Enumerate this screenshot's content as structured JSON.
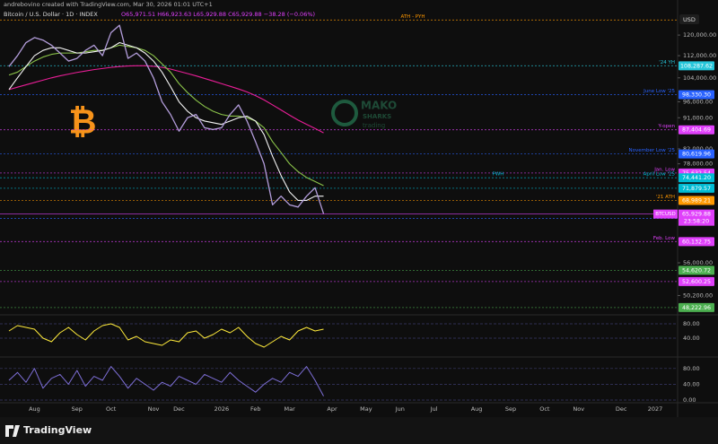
{
  "chart_data": {
    "type": "line",
    "credit": "andrebovino created with TradingView.com, Mar 30, 2026 01:01 UTC+1",
    "title": "Bitcoin / U.S. Dollar · 1D · INDEX",
    "ohlc": "O65,971.51 H66,923.63 L65,929.88 C65,929.88 −38.28 (−0.06%)",
    "currency": "USD",
    "brand": "TradingView",
    "watermark": {
      "symbol": "₿",
      "name": "MAKO",
      "sub": "SHARKS",
      "tag": "trading"
    },
    "log_scale": true,
    "ylim": [
      47200,
      129000
    ],
    "yticks": [
      {
        "value": 120000,
        "label": "120,000.00"
      },
      {
        "value": 112000,
        "label": "112,000.00"
      },
      {
        "value": 104000,
        "label": "104,000.00"
      },
      {
        "value": 96000,
        "label": "96,000.00"
      },
      {
        "value": 91000,
        "label": "91,000.00"
      },
      {
        "value": 82000,
        "label": "82,000.00"
      },
      {
        "value": 78000,
        "label": "78,000.00"
      },
      {
        "value": 56000,
        "label": "56,000.00"
      },
      {
        "value": 50200,
        "label": "50,200.00"
      }
    ],
    "categories": [
      null,
      null,
      null,
      "Aug",
      null,
      null,
      null,
      null,
      "Sep",
      null,
      null,
      null,
      "Oct",
      null,
      null,
      null,
      null,
      "Nov",
      null,
      null,
      "Dec",
      null,
      null,
      null,
      null,
      "2026",
      null,
      null,
      null,
      "Feb",
      null,
      null,
      null,
      "Mar",
      null,
      null,
      null,
      null,
      "Apr",
      null,
      null,
      null,
      "May",
      null,
      null,
      null,
      "Jun",
      null,
      null,
      null,
      "Jul",
      null,
      null,
      null,
      null,
      "Aug",
      null,
      null,
      null,
      "Sep",
      null,
      null,
      null,
      "Oct",
      null,
      null,
      null,
      "Nov",
      null,
      null,
      null,
      null,
      "Dec",
      null,
      null,
      null,
      "2027"
    ],
    "series": [
      {
        "color": "#e91e97",
        "values": [
          100000,
          100800,
          101600,
          102400,
          103200,
          104000,
          104700,
          105300,
          105900,
          106400,
          106900,
          107300,
          107700,
          108000,
          108200,
          108300,
          108300,
          108100,
          107700,
          107100,
          106300,
          105500,
          104700,
          103800,
          102900,
          102000,
          101100,
          100200,
          99200,
          98000,
          96600,
          95000,
          93400,
          91800,
          90300,
          89000,
          87800,
          86500,
          null,
          null,
          null,
          null,
          null,
          null,
          null,
          null,
          null,
          null,
          null,
          null,
          null,
          null,
          null,
          null,
          null,
          null,
          null,
          null,
          null,
          null,
          null,
          null,
          null,
          null,
          null,
          null,
          null,
          null,
          null,
          null,
          null,
          null,
          null,
          null,
          null,
          null,
          null
        ]
      },
      {
        "color": "#8bc34a",
        "values": [
          105000,
          106000,
          108000,
          110000,
          111500,
          112500,
          113000,
          113000,
          113000,
          113500,
          114000,
          114000,
          115000,
          116000,
          115500,
          115000,
          114000,
          112000,
          109000,
          106000,
          102000,
          99000,
          96500,
          94500,
          93000,
          92000,
          91500,
          91500,
          91000,
          90000,
          88000,
          84000,
          81000,
          78000,
          76000,
          74500,
          73500,
          72500,
          null,
          null,
          null,
          null,
          null,
          null,
          null,
          null,
          null,
          null,
          null,
          null,
          null,
          null,
          null,
          null,
          null,
          null,
          null,
          null,
          null,
          null,
          null,
          null,
          null,
          null,
          null,
          null,
          null,
          null,
          null,
          null,
          null,
          null,
          null,
          null,
          null,
          null,
          null
        ]
      },
      {
        "color": "#f5f5f5",
        "values": [
          100000,
          104000,
          108000,
          112000,
          114000,
          115000,
          115000,
          114000,
          113000,
          113000,
          113500,
          114000,
          115000,
          117000,
          116000,
          115000,
          113000,
          110000,
          106000,
          101000,
          96000,
          93000,
          91000,
          90000,
          89500,
          89000,
          90000,
          91000,
          91500,
          90000,
          86000,
          80000,
          75000,
          71000,
          69000,
          69000,
          70000,
          70000,
          null,
          null,
          null,
          null,
          null,
          null,
          null,
          null,
          null,
          null,
          null,
          null,
          null,
          null,
          null,
          null,
          null,
          null,
          null,
          null,
          null,
          null,
          null,
          null,
          null,
          null,
          null,
          null,
          null,
          null,
          null,
          null,
          null,
          null,
          null,
          null,
          null,
          null,
          null
        ]
      },
      {
        "name": "BTCUSD",
        "color": "#b39ddb",
        "values": [
          108000,
          112000,
          117000,
          119000,
          118000,
          116000,
          113000,
          110000,
          111000,
          114000,
          116000,
          112000,
          121000,
          124000,
          111000,
          113000,
          110000,
          104000,
          96000,
          92000,
          87000,
          91000,
          92000,
          88000,
          87500,
          88000,
          92000,
          95000,
          90000,
          84000,
          78000,
          68000,
          70000,
          68000,
          67500,
          70000,
          72000,
          66000,
          null,
          null,
          null,
          null,
          null,
          null,
          null,
          null,
          null,
          null,
          null,
          null,
          null,
          null,
          null,
          null,
          null,
          null,
          null,
          null,
          null,
          null,
          null,
          null,
          null,
          null,
          null,
          null,
          null,
          null,
          null,
          null,
          null,
          null,
          null,
          null,
          null,
          null,
          null
        ]
      }
    ],
    "levels": [
      {
        "name": "ATH - PYH",
        "value": 126198,
        "color": "#ff9800"
      },
      {
        "name": "'24 YH",
        "value": 108287.62,
        "label": "108,287.62",
        "color": "#26c6da"
      },
      {
        "name": "June Low '25",
        "value": 98330.3,
        "label": "98,330.30",
        "color": "#2962ff"
      },
      {
        "name": "Y-open",
        "value": 87404.69,
        "label": "87,404.69",
        "color": "#e040fb"
      },
      {
        "name": "November Low '25",
        "value": 80619.96,
        "label": "80,619.96",
        "color": "#2962ff"
      },
      {
        "name": "Jan. Low",
        "value": 75632.54,
        "label": "75,632.54",
        "color": "#e040fb"
      },
      {
        "name": "April Low '25",
        "note": "PWH",
        "value": 74441.2,
        "label": "74,441.20",
        "color": "#00bcd4"
      },
      {
        "value": 71879.57,
        "label": "71,879.57",
        "color": "#00bcd4"
      },
      {
        "name": "'21 ATH",
        "value": 68989.21,
        "label": "68,989.21",
        "color": "#ff9800"
      },
      {
        "name": "PWL",
        "value": 64960.67,
        "label": "64,960.67",
        "color": "#2962ff"
      },
      {
        "name": "Feb. Low",
        "value": 60132.75,
        "label": "60,132.75",
        "color": "#e040fb"
      },
      {
        "value": 54620.72,
        "label": "54,620.72",
        "color": "#4caf50"
      },
      {
        "value": 52600.25,
        "label": "52,600.25",
        "color": "#e040fb"
      },
      {
        "value": 48222.96,
        "label": "48,222.96",
        "color": "#4caf50"
      }
    ],
    "last": {
      "symbol": "BTCUSD",
      "value": 65929.88,
      "label": "65,929.88",
      "countdown": "23:58:20",
      "color": "#e040fb"
    },
    "panes": [
      {
        "ylim": [
          0,
          100
        ],
        "yticks": [
          {
            "value": 80,
            "label": "80.00"
          },
          {
            "value": 40,
            "label": "40.00"
          }
        ],
        "color": "#ffeb3b",
        "values": [
          60,
          75,
          70,
          65,
          40,
          30,
          55,
          70,
          50,
          35,
          60,
          75,
          80,
          70,
          35,
          45,
          30,
          25,
          20,
          35,
          30,
          55,
          60,
          40,
          50,
          65,
          55,
          70,
          45,
          25,
          15,
          30,
          45,
          35,
          60,
          70,
          60,
          65,
          null,
          null,
          null,
          null,
          null,
          null,
          null,
          null,
          null,
          null,
          null,
          null,
          null,
          null,
          null,
          null,
          null,
          null,
          null,
          null,
          null,
          null,
          null,
          null,
          null,
          null,
          null,
          null,
          null,
          null,
          null,
          null,
          null,
          null,
          null,
          null,
          null,
          null,
          null
        ]
      },
      {
        "ylim": [
          0,
          100
        ],
        "yticks": [
          {
            "value": 80,
            "label": "80.00"
          },
          {
            "value": 40,
            "label": "40.00"
          },
          {
            "value": 0,
            "label": "0.00"
          }
        ],
        "color": "#7e6fd8",
        "values": [
          50,
          70,
          45,
          80,
          30,
          55,
          65,
          40,
          75,
          35,
          60,
          50,
          85,
          60,
          30,
          55,
          40,
          25,
          45,
          35,
          60,
          50,
          40,
          65,
          55,
          45,
          70,
          50,
          35,
          20,
          40,
          55,
          45,
          70,
          60,
          85,
          50,
          10,
          null,
          null,
          null,
          null,
          null,
          null,
          null,
          null,
          null,
          null,
          null,
          null,
          null,
          null,
          null,
          null,
          null,
          null,
          null,
          null,
          null,
          null,
          null,
          null,
          null,
          null,
          null,
          null,
          null,
          null,
          null,
          null,
          null,
          null,
          null,
          null,
          null,
          null,
          null
        ]
      }
    ]
  }
}
